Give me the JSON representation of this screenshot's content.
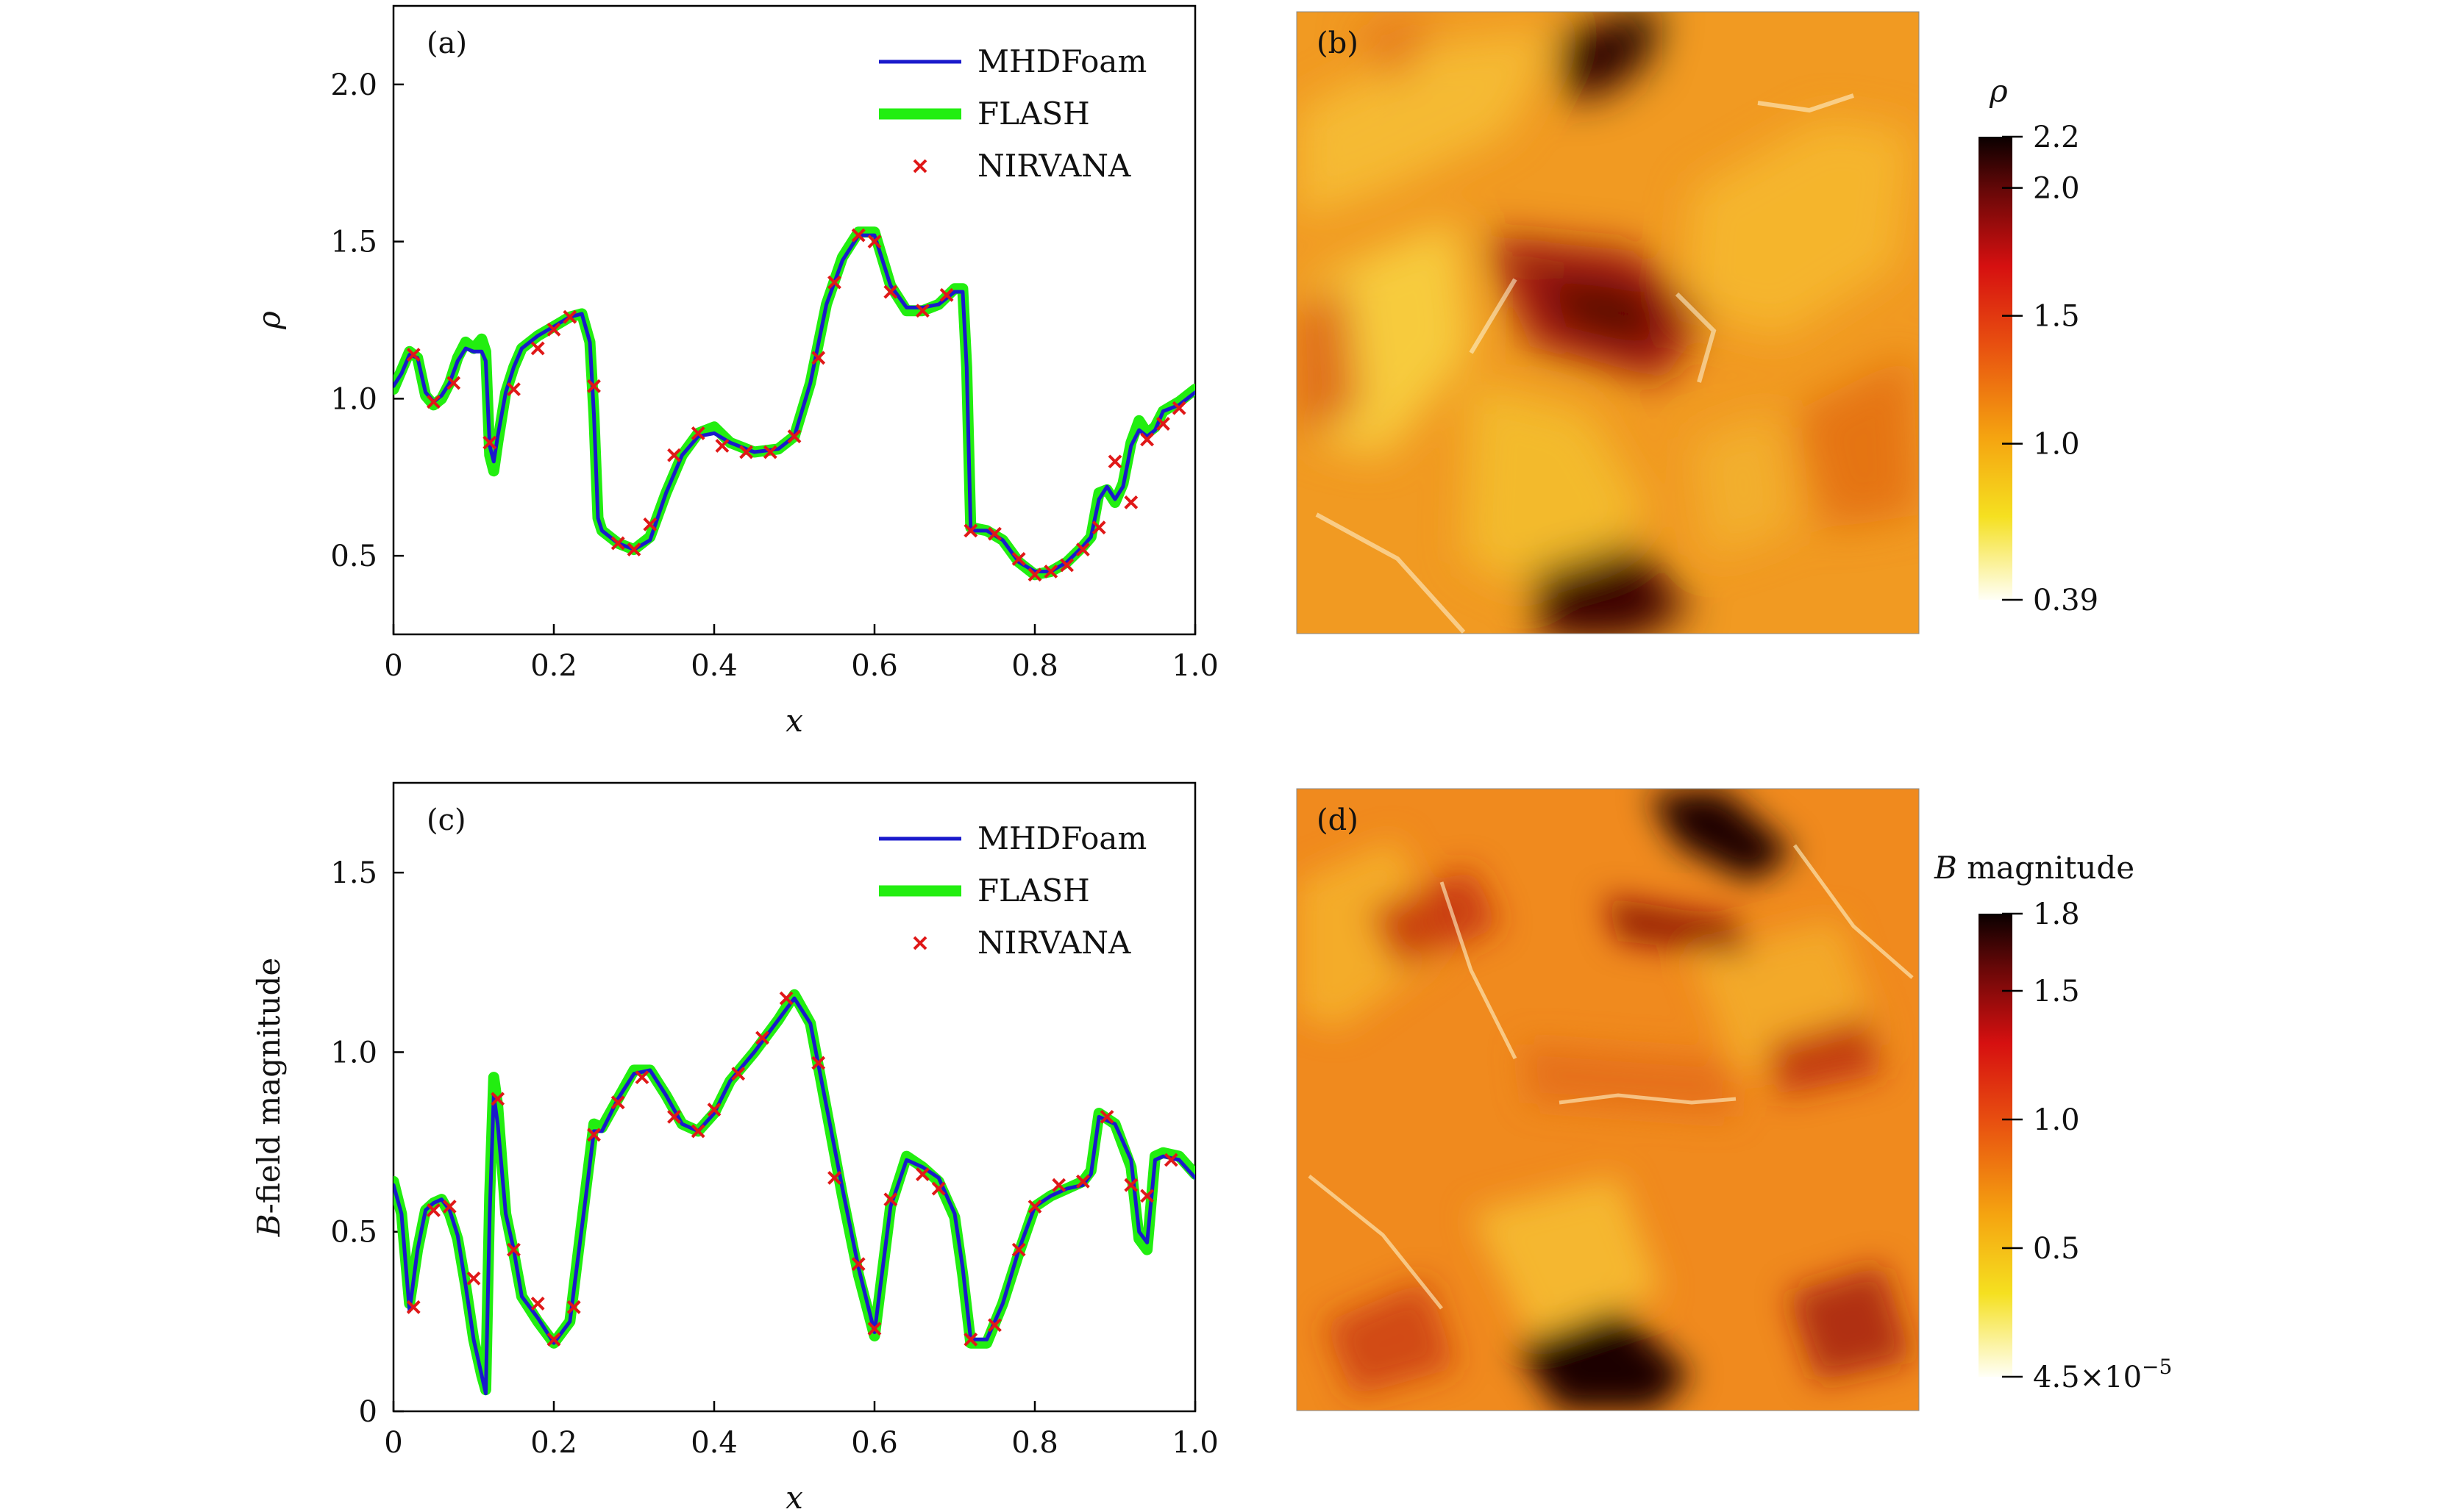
{
  "panels": {
    "a": {
      "label": "(a)"
    },
    "b": {
      "label": "(b)"
    },
    "c": {
      "label": "(c)"
    },
    "d": {
      "label": "(d)"
    }
  },
  "legend": [
    "MHDFoam",
    "FLASH",
    "NIRVANA"
  ],
  "colors": {
    "mhdfoam": "#1a1acc",
    "flash": "#22ee10",
    "nirvana": "#e01818"
  },
  "chart_data": [
    {
      "type": "line",
      "panel": "(a)",
      "xlabel": "x",
      "ylabel": "ρ",
      "xlim": [
        0,
        1.0
      ],
      "ylim": [
        0.25,
        2.25
      ],
      "xticks": [
        "0",
        "0.2",
        "0.4",
        "0.6",
        "0.8",
        "1.0"
      ],
      "yticks": [
        "0.5",
        "1.0",
        "1.5",
        "2.0"
      ],
      "series": [
        {
          "name": "MHDFoam",
          "x": [
            0,
            0.01,
            0.02,
            0.03,
            0.04,
            0.05,
            0.06,
            0.07,
            0.08,
            0.09,
            0.1,
            0.11,
            0.115,
            0.12,
            0.125,
            0.13,
            0.14,
            0.15,
            0.16,
            0.18,
            0.2,
            0.22,
            0.235,
            0.245,
            0.25,
            0.255,
            0.26,
            0.28,
            0.3,
            0.32,
            0.34,
            0.36,
            0.38,
            0.4,
            0.42,
            0.45,
            0.48,
            0.5,
            0.52,
            0.54,
            0.56,
            0.58,
            0.6,
            0.62,
            0.64,
            0.66,
            0.68,
            0.7,
            0.71,
            0.715,
            0.72,
            0.74,
            0.76,
            0.78,
            0.8,
            0.82,
            0.84,
            0.86,
            0.87,
            0.88,
            0.89,
            0.9,
            0.91,
            0.92,
            0.93,
            0.94,
            0.95,
            0.96,
            0.98,
            1.0
          ],
          "y": [
            1.04,
            1.08,
            1.14,
            1.13,
            1.02,
            0.99,
            1.01,
            1.05,
            1.12,
            1.16,
            1.15,
            1.15,
            1.12,
            0.85,
            0.8,
            0.88,
            1.02,
            1.1,
            1.16,
            1.2,
            1.23,
            1.26,
            1.27,
            1.18,
            0.95,
            0.62,
            0.58,
            0.54,
            0.52,
            0.55,
            0.7,
            0.82,
            0.88,
            0.89,
            0.86,
            0.83,
            0.84,
            0.88,
            1.05,
            1.3,
            1.44,
            1.52,
            1.52,
            1.36,
            1.29,
            1.29,
            1.3,
            1.34,
            1.34,
            1.1,
            0.58,
            0.58,
            0.55,
            0.48,
            0.45,
            0.45,
            0.48,
            0.53,
            0.56,
            0.68,
            0.72,
            0.68,
            0.72,
            0.85,
            0.9,
            0.88,
            0.9,
            0.96,
            0.98,
            1.02
          ]
        },
        {
          "name": "FLASH",
          "x": [
            0,
            0.01,
            0.02,
            0.03,
            0.04,
            0.05,
            0.06,
            0.07,
            0.08,
            0.09,
            0.1,
            0.11,
            0.115,
            0.12,
            0.125,
            0.13,
            0.14,
            0.15,
            0.16,
            0.18,
            0.2,
            0.22,
            0.235,
            0.245,
            0.25,
            0.255,
            0.26,
            0.28,
            0.3,
            0.32,
            0.34,
            0.36,
            0.38,
            0.4,
            0.42,
            0.45,
            0.48,
            0.5,
            0.52,
            0.54,
            0.56,
            0.58,
            0.6,
            0.62,
            0.64,
            0.66,
            0.68,
            0.7,
            0.71,
            0.715,
            0.72,
            0.74,
            0.76,
            0.78,
            0.8,
            0.82,
            0.84,
            0.86,
            0.87,
            0.88,
            0.89,
            0.9,
            0.91,
            0.92,
            0.93,
            0.94,
            0.95,
            0.96,
            0.98,
            1.0
          ],
          "y": [
            1.03,
            1.09,
            1.15,
            1.13,
            1.01,
            0.98,
            1.0,
            1.05,
            1.13,
            1.18,
            1.16,
            1.19,
            1.15,
            0.82,
            0.77,
            0.86,
            1.02,
            1.1,
            1.16,
            1.2,
            1.23,
            1.26,
            1.27,
            1.18,
            0.95,
            0.62,
            0.58,
            0.54,
            0.52,
            0.56,
            0.7,
            0.82,
            0.89,
            0.91,
            0.86,
            0.83,
            0.84,
            0.88,
            1.05,
            1.3,
            1.45,
            1.53,
            1.53,
            1.36,
            1.28,
            1.28,
            1.3,
            1.35,
            1.35,
            1.1,
            0.59,
            0.58,
            0.55,
            0.48,
            0.44,
            0.45,
            0.48,
            0.53,
            0.56,
            0.7,
            0.71,
            0.67,
            0.73,
            0.86,
            0.93,
            0.89,
            0.91,
            0.96,
            0.99,
            1.03
          ]
        },
        {
          "name": "NIRVANA",
          "x": [
            0.025,
            0.05,
            0.075,
            0.12,
            0.15,
            0.18,
            0.2,
            0.22,
            0.25,
            0.28,
            0.3,
            0.32,
            0.35,
            0.38,
            0.41,
            0.44,
            0.47,
            0.5,
            0.53,
            0.55,
            0.58,
            0.6,
            0.62,
            0.66,
            0.69,
            0.72,
            0.75,
            0.78,
            0.8,
            0.82,
            0.84,
            0.86,
            0.88,
            0.9,
            0.92,
            0.94,
            0.96,
            0.98
          ],
          "y": [
            1.14,
            0.99,
            1.05,
            0.86,
            1.03,
            1.16,
            1.22,
            1.26,
            1.04,
            0.54,
            0.52,
            0.6,
            0.82,
            0.89,
            0.85,
            0.83,
            0.83,
            0.88,
            1.13,
            1.37,
            1.52,
            1.5,
            1.34,
            1.28,
            1.33,
            0.58,
            0.57,
            0.49,
            0.44,
            0.45,
            0.47,
            0.52,
            0.59,
            0.8,
            0.67,
            0.87,
            0.92,
            0.97
          ]
        }
      ]
    },
    {
      "type": "line",
      "panel": "(c)",
      "xlabel": "x",
      "ylabel": "B-field magnitude",
      "xlim": [
        0,
        1.0
      ],
      "ylim": [
        0,
        1.75
      ],
      "xticks": [
        "0",
        "0.2",
        "0.4",
        "0.6",
        "0.8",
        "1.0"
      ],
      "yticks": [
        "0",
        "0.5",
        "1.0",
        "1.5"
      ],
      "series": [
        {
          "name": "MHDFoam",
          "x": [
            0,
            0.01,
            0.02,
            0.03,
            0.04,
            0.05,
            0.06,
            0.07,
            0.08,
            0.09,
            0.1,
            0.11,
            0.115,
            0.12,
            0.125,
            0.13,
            0.14,
            0.15,
            0.16,
            0.18,
            0.2,
            0.22,
            0.24,
            0.25,
            0.26,
            0.28,
            0.3,
            0.32,
            0.34,
            0.36,
            0.38,
            0.4,
            0.42,
            0.45,
            0.48,
            0.5,
            0.52,
            0.54,
            0.56,
            0.58,
            0.6,
            0.62,
            0.64,
            0.66,
            0.68,
            0.7,
            0.71,
            0.72,
            0.74,
            0.76,
            0.78,
            0.8,
            0.82,
            0.84,
            0.86,
            0.87,
            0.88,
            0.9,
            0.92,
            0.93,
            0.94,
            0.95,
            0.96,
            0.98,
            1.0
          ],
          "y": [
            0.63,
            0.55,
            0.28,
            0.45,
            0.56,
            0.58,
            0.59,
            0.56,
            0.49,
            0.35,
            0.2,
            0.1,
            0.05,
            0.55,
            0.88,
            0.8,
            0.55,
            0.45,
            0.32,
            0.26,
            0.19,
            0.25,
            0.6,
            0.78,
            0.78,
            0.87,
            0.94,
            0.95,
            0.88,
            0.8,
            0.78,
            0.83,
            0.92,
            1.0,
            1.09,
            1.15,
            1.08,
            0.85,
            0.62,
            0.4,
            0.22,
            0.57,
            0.7,
            0.68,
            0.65,
            0.55,
            0.4,
            0.2,
            0.2,
            0.3,
            0.45,
            0.57,
            0.6,
            0.62,
            0.63,
            0.66,
            0.82,
            0.8,
            0.7,
            0.5,
            0.47,
            0.7,
            0.71,
            0.7,
            0.65
          ]
        },
        {
          "name": "FLASH",
          "x": [
            0,
            0.01,
            0.02,
            0.03,
            0.04,
            0.05,
            0.06,
            0.07,
            0.08,
            0.09,
            0.1,
            0.11,
            0.115,
            0.12,
            0.125,
            0.13,
            0.14,
            0.15,
            0.16,
            0.18,
            0.2,
            0.22,
            0.24,
            0.25,
            0.26,
            0.28,
            0.3,
            0.32,
            0.34,
            0.36,
            0.38,
            0.4,
            0.42,
            0.45,
            0.48,
            0.5,
            0.52,
            0.54,
            0.56,
            0.58,
            0.6,
            0.62,
            0.64,
            0.66,
            0.68,
            0.7,
            0.71,
            0.72,
            0.74,
            0.76,
            0.78,
            0.8,
            0.82,
            0.84,
            0.86,
            0.87,
            0.88,
            0.9,
            0.92,
            0.93,
            0.94,
            0.95,
            0.96,
            0.98,
            1.0
          ],
          "y": [
            0.64,
            0.55,
            0.3,
            0.45,
            0.56,
            0.58,
            0.59,
            0.55,
            0.48,
            0.35,
            0.2,
            0.1,
            0.06,
            0.6,
            0.93,
            0.85,
            0.55,
            0.44,
            0.32,
            0.25,
            0.19,
            0.25,
            0.62,
            0.8,
            0.79,
            0.87,
            0.95,
            0.95,
            0.88,
            0.8,
            0.78,
            0.83,
            0.92,
            1.0,
            1.09,
            1.16,
            1.08,
            0.84,
            0.6,
            0.38,
            0.21,
            0.57,
            0.71,
            0.68,
            0.64,
            0.54,
            0.38,
            0.19,
            0.19,
            0.3,
            0.44,
            0.57,
            0.6,
            0.62,
            0.64,
            0.67,
            0.83,
            0.8,
            0.68,
            0.48,
            0.45,
            0.71,
            0.72,
            0.71,
            0.66
          ]
        },
        {
          "name": "NIRVANA",
          "x": [
            0.025,
            0.05,
            0.07,
            0.1,
            0.13,
            0.15,
            0.18,
            0.2,
            0.225,
            0.25,
            0.28,
            0.31,
            0.35,
            0.38,
            0.4,
            0.43,
            0.46,
            0.49,
            0.53,
            0.55,
            0.58,
            0.6,
            0.62,
            0.66,
            0.68,
            0.72,
            0.75,
            0.78,
            0.8,
            0.83,
            0.86,
            0.89,
            0.92,
            0.94,
            0.97
          ],
          "y": [
            0.29,
            0.56,
            0.57,
            0.37,
            0.87,
            0.45,
            0.3,
            0.2,
            0.29,
            0.77,
            0.86,
            0.93,
            0.82,
            0.78,
            0.84,
            0.94,
            1.04,
            1.15,
            0.97,
            0.65,
            0.41,
            0.23,
            0.59,
            0.66,
            0.62,
            0.2,
            0.24,
            0.45,
            0.57,
            0.63,
            0.64,
            0.82,
            0.63,
            0.6,
            0.7
          ]
        }
      ]
    },
    {
      "type": "heatmap",
      "panel": "(b)",
      "colorbar_label": "ρ",
      "colorbar_ticks": [
        "0.39",
        "1.0",
        "1.5",
        "2.0",
        "2.2"
      ],
      "colorbar_values": [
        0.39,
        1.0,
        1.5,
        2.0,
        2.2
      ],
      "colorbar_range": [
        0.39,
        2.2
      ]
    },
    {
      "type": "heatmap",
      "panel": "(d)",
      "colorbar_label": "B magnitude",
      "colorbar_ticks": [
        "4.5×10",
        "0.5",
        "1.0",
        "1.5",
        "1.8"
      ],
      "colorbar_tick_exp": "−5",
      "colorbar_values": [
        0.0,
        0.5,
        1.0,
        1.5,
        1.8
      ],
      "colorbar_range": [
        0.0,
        1.8
      ]
    }
  ]
}
